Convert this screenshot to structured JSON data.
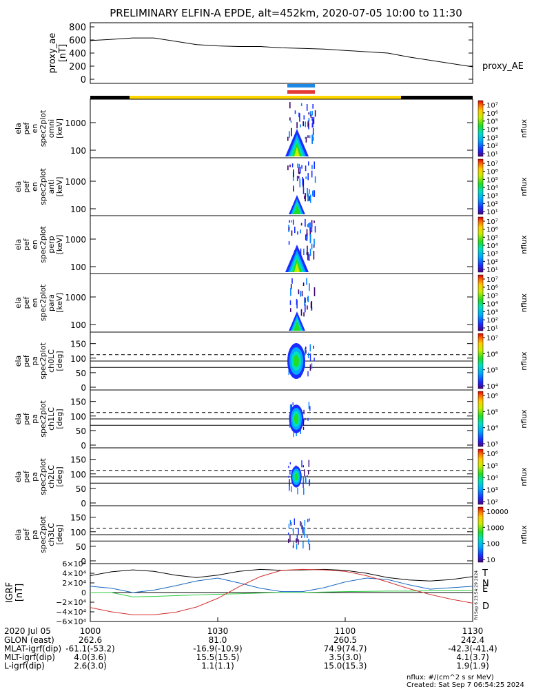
{
  "title": "PRELIMINARY ELFIN-A EPDE, alt=452km, 2020-07-05 10:00 to 11:30",
  "colors": {
    "state_science": "#ffd600",
    "state_off": "#000000",
    "bar_blue": "#1e88e5",
    "bar_red": "#e53935",
    "bx": "#1565c0",
    "by": "#2ecc40",
    "bz": "#d32f2f",
    "bt": "#000000"
  },
  "panels": {
    "proxy_ae": {
      "ylabel": [
        "proxy_ae",
        "[nT]"
      ],
      "yticks": [
        "800",
        "600",
        "400",
        "200",
        "0"
      ],
      "legend": "proxy_AE"
    },
    "spec": [
      {
        "ylabel": [
          "ela",
          "pef",
          "en",
          "spec2plot",
          "omni",
          "[keV]"
        ],
        "yticks": [
          "1000",
          "100"
        ],
        "cticks": [
          "10⁷",
          "10⁶",
          "10⁵",
          "10⁴",
          "10³",
          "10²",
          "10¹"
        ],
        "clabel": "nflux"
      },
      {
        "ylabel": [
          "ela",
          "pef",
          "en",
          "spec2plot",
          "anti",
          "[keV]"
        ],
        "yticks": [
          "1000",
          "100"
        ],
        "cticks": [
          "10⁷",
          "10⁶",
          "10⁵",
          "10⁴",
          "10³",
          "10²",
          "10¹"
        ],
        "clabel": "nflux"
      },
      {
        "ylabel": [
          "ela",
          "pef",
          "en",
          "spec2plot",
          "perp",
          "[keV]"
        ],
        "yticks": [
          "1000",
          "100"
        ],
        "cticks": [
          "10⁷",
          "10⁶",
          "10⁵",
          "10⁴",
          "10³",
          "10²",
          "10¹"
        ],
        "clabel": "nflux"
      },
      {
        "ylabel": [
          "ela",
          "pef",
          "en",
          "spec2plot",
          "para",
          "[keV]"
        ],
        "yticks": [
          "1000",
          "100"
        ],
        "cticks": [
          "10⁷",
          "10⁶",
          "10⁵",
          "10⁴",
          "10³",
          "10²",
          "10¹"
        ],
        "clabel": "nflux"
      }
    ],
    "pa": [
      {
        "ylabel": [
          "ela",
          "pef",
          "pa",
          "spec2plot",
          "ch0LC",
          "[deg]"
        ],
        "yticks": [
          "150",
          "100",
          "50",
          "0"
        ],
        "cticks": [
          "10⁷",
          "10⁶",
          "10⁵",
          "10⁴"
        ],
        "clabel": "nflux"
      },
      {
        "ylabel": [
          "ela",
          "pef",
          "pa",
          "spec2plot",
          "ch1LC",
          "[deg]"
        ],
        "yticks": [
          "150",
          "100",
          "50",
          "0"
        ],
        "cticks": [
          "10⁶",
          "10⁵",
          "10⁴",
          "10³"
        ],
        "clabel": "nflux"
      },
      {
        "ylabel": [
          "ela",
          "pef",
          "pa",
          "spec2plot",
          "ch2LC",
          "[deg]"
        ],
        "yticks": [
          "150",
          "100",
          "50",
          "0"
        ],
        "cticks": [
          "10⁶",
          "10⁵",
          "10⁴",
          "10³",
          "10²"
        ],
        "clabel": "nflux"
      },
      {
        "ylabel": [
          "ela",
          "pef",
          "pa",
          "spec2plot",
          "ch3LC",
          "[deg]"
        ],
        "yticks": [
          "150",
          "100",
          "50",
          "0"
        ],
        "cticks": [
          "10000",
          "1000",
          "100",
          "10"
        ],
        "clabel": "nflux"
      }
    ],
    "igrf": {
      "ylabel": [
        "IGRF",
        "[nT]"
      ],
      "yticks": [
        "6×10⁴",
        "4×10⁴",
        "2×10⁴",
        "0",
        "−2×10⁴",
        "−4×10⁴",
        "−6×10⁴"
      ],
      "legend": [
        "T",
        "N",
        "E",
        "D"
      ],
      "stamp": "Fri Sep  6 23:54:29 2024"
    }
  },
  "xaxis": {
    "date": "2020 Jul 05",
    "ticks": [
      "1000",
      "1030",
      "1100",
      "1130"
    ],
    "rows": [
      {
        "label": "GLON (east)",
        "values": [
          "262.6",
          "81.0",
          "260.5",
          "242.4"
        ]
      },
      {
        "label": "MLAT-igrf(dip)",
        "values": [
          "-61.1(-53.2)",
          "-16.9(-10.9)",
          "74.9(74.7)",
          "-42.3(-41.4)"
        ]
      },
      {
        "label": "MLT-igrf(dip)",
        "values": [
          "4.0(3.6)",
          "15.5(15.5)",
          "3.5(3.0)",
          "4.1(3.7)"
        ]
      },
      {
        "label": "L-igrf(dip)",
        "values": [
          "2.6(3.0)",
          "1.1(1.1)",
          "15.0(15.3)",
          "1.9(1.9)"
        ]
      }
    ]
  },
  "footer": {
    "units": "nflux: #/(cm^2 s sr MeV)",
    "created": "Created: Sat Sep  7 06:54:25 2024"
  },
  "chart_data": {
    "type": "line",
    "x_range_utc": [
      "10:00",
      "11:30"
    ],
    "proxy_ae": {
      "ylim": [
        0,
        800
      ],
      "x_minutes": [
        0,
        5,
        10,
        15,
        20,
        25,
        30,
        35,
        40,
        45,
        50,
        55,
        60,
        65,
        70,
        75,
        80,
        85,
        90
      ],
      "values": [
        590,
        610,
        630,
        630,
        580,
        530,
        510,
        500,
        500,
        480,
        470,
        460,
        440,
        420,
        400,
        340,
        290,
        240,
        190
      ]
    },
    "igrf_components": {
      "ylim": [
        -60000,
        60000
      ],
      "x_minutes": [
        0,
        5,
        10,
        15,
        20,
        25,
        30,
        35,
        40,
        45,
        50,
        55,
        60,
        65,
        70,
        75,
        80,
        85,
        90
      ],
      "T": [
        35000,
        43000,
        47000,
        44000,
        36000,
        31000,
        36000,
        44000,
        48000,
        46000,
        47000,
        48000,
        46000,
        40000,
        31000,
        26000,
        24000,
        27000,
        33000
      ],
      "N": [
        13000,
        9000,
        0,
        5000,
        14000,
        24000,
        30000,
        20000,
        9000,
        2000,
        2000,
        10000,
        22000,
        30000,
        27000,
        16000,
        7000,
        10000,
        13000
      ],
      "E": [
        0,
        0,
        -9000,
        -8000,
        -6500,
        -5000,
        -3500,
        -2500,
        -1000,
        0,
        0,
        1000,
        2000,
        2500,
        3000,
        3000,
        3500,
        3500,
        4000
      ],
      "D": [
        -31000,
        -40000,
        -46000,
        -46000,
        -41000,
        -30000,
        -12000,
        12000,
        33000,
        46000,
        48000,
        47000,
        44000,
        35000,
        22000,
        8000,
        -4000,
        -14000,
        -22000
      ]
    },
    "science_zone_utc": [
      "10:06",
      "11:24"
    ],
    "dashed_reference_pa_deg": 112,
    "solid_reference_pa_deg": [
      90,
      68
    ]
  }
}
